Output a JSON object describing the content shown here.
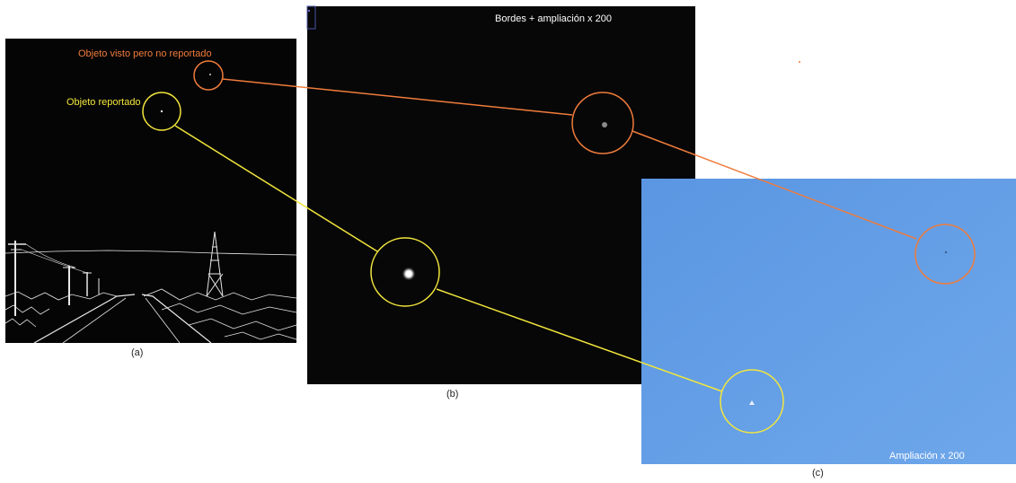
{
  "panel_a": {
    "caption": "(a)",
    "label_orange": "Objeto visto pero no reportado",
    "label_yellow": "Objeto reportado"
  },
  "panel_b": {
    "caption": "(b)",
    "title": "Bordes + ampliación x 200"
  },
  "panel_c": {
    "caption": "(c)",
    "title": "Ampliación x 200"
  },
  "colors": {
    "orange": "#f07c3c",
    "yellow": "#f2e63c",
    "sky": "#5f9be4",
    "dark": "#050505"
  }
}
